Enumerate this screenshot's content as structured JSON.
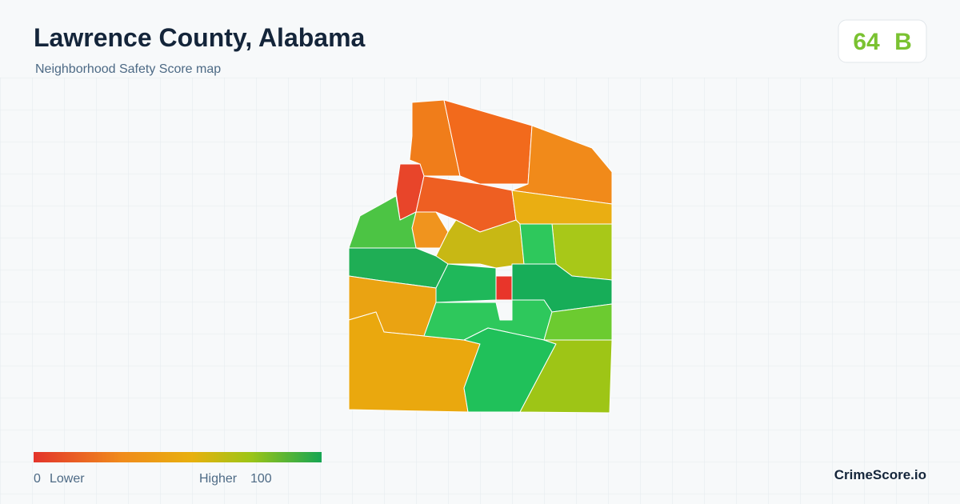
{
  "header": {
    "title": "Lawrence County, Alabama",
    "subtitle": "Neighborhood Safety Score map"
  },
  "score": {
    "value": "64",
    "grade": "B"
  },
  "legend": {
    "min": "0",
    "min_label": "Lower",
    "max_label": "Higher",
    "max": "100"
  },
  "brand": "CrimeScore.io"
}
